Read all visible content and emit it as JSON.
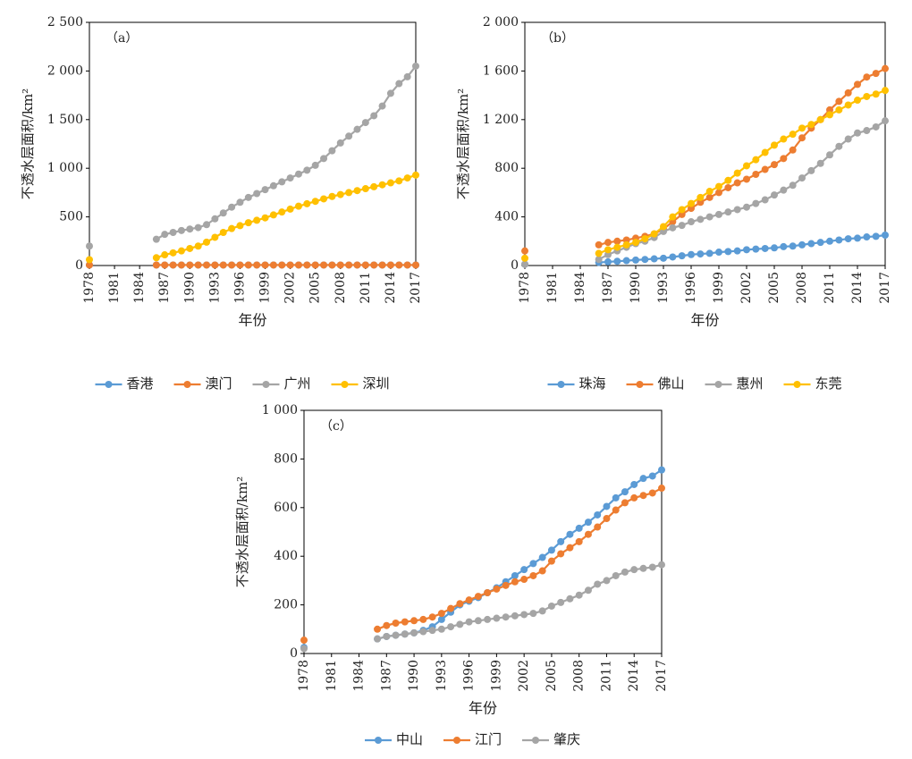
{
  "chart_data": [
    {
      "type": "line",
      "panel_label": "（a）",
      "x_label": "年份",
      "y_label": "不透水层面积/km²",
      "x": [
        1978,
        1979,
        1980,
        1981,
        1982,
        1983,
        1984,
        1985,
        1986,
        1987,
        1988,
        1989,
        1990,
        1991,
        1992,
        1993,
        1994,
        1995,
        1996,
        1997,
        1998,
        1999,
        2000,
        2001,
        2002,
        2003,
        2004,
        2005,
        2006,
        2007,
        2008,
        2009,
        2010,
        2011,
        2012,
        2013,
        2014,
        2015,
        2016,
        2017
      ],
      "xlim": [
        1978,
        2017
      ],
      "xticks": [
        1978,
        1981,
        1984,
        1987,
        1990,
        1993,
        1996,
        1999,
        2002,
        2005,
        2008,
        2011,
        2014,
        2017
      ],
      "ylim": [
        0,
        2500
      ],
      "yticks": [
        0,
        500,
        {
          "value": 1000,
          "label": "1 000"
        },
        {
          "value": 1500,
          "label": "1 500"
        },
        {
          "value": 2000,
          "label": "2 000"
        },
        {
          "value": 2500,
          "label": "2 500"
        }
      ],
      "series": [
        {
          "name": "香港",
          "color": "#5b9bd5",
          "values": [
            5,
            null,
            null,
            null,
            null,
            null,
            null,
            null,
            5,
            5,
            5,
            5,
            5,
            5,
            5,
            5,
            5,
            5,
            5,
            5,
            5,
            5,
            5,
            5,
            5,
            5,
            5,
            5,
            5,
            5,
            5,
            5,
            5,
            5,
            5,
            5,
            5,
            5,
            5,
            5
          ]
        },
        {
          "name": "澳门",
          "color": "#ed7d31",
          "values": [
            5,
            null,
            null,
            null,
            null,
            null,
            null,
            null,
            5,
            5,
            5,
            5,
            5,
            5,
            5,
            5,
            5,
            5,
            5,
            5,
            5,
            5,
            5,
            5,
            5,
            5,
            5,
            5,
            5,
            5,
            5,
            5,
            5,
            5,
            5,
            5,
            5,
            5,
            5,
            5
          ]
        },
        {
          "name": "广州",
          "color": "#a5a5a5",
          "values": [
            200,
            null,
            null,
            null,
            null,
            null,
            null,
            null,
            270,
            320,
            340,
            360,
            375,
            390,
            420,
            480,
            540,
            600,
            650,
            700,
            740,
            780,
            820,
            860,
            900,
            940,
            980,
            1030,
            1100,
            1180,
            1260,
            1330,
            1400,
            1470,
            1540,
            1640,
            1770,
            1870,
            1940,
            2050
          ]
        },
        {
          "name": "深圳",
          "color": "#ffc000",
          "values": [
            60,
            null,
            null,
            null,
            null,
            null,
            null,
            null,
            80,
            110,
            130,
            150,
            175,
            200,
            240,
            290,
            340,
            380,
            410,
            440,
            465,
            490,
            520,
            550,
            580,
            610,
            635,
            660,
            685,
            710,
            730,
            750,
            770,
            790,
            810,
            830,
            850,
            870,
            900,
            930
          ]
        }
      ]
    },
    {
      "type": "line",
      "panel_label": "（b）",
      "x_label": "年份",
      "y_label": "不透水层面积/km²",
      "x": [
        1978,
        1979,
        1980,
        1981,
        1982,
        1983,
        1984,
        1985,
        1986,
        1987,
        1988,
        1989,
        1990,
        1991,
        1992,
        1993,
        1994,
        1995,
        1996,
        1997,
        1998,
        1999,
        2000,
        2001,
        2002,
        2003,
        2004,
        2005,
        2006,
        2007,
        2008,
        2009,
        2010,
        2011,
        2012,
        2013,
        2014,
        2015,
        2016,
        2017
      ],
      "xlim": [
        1978,
        2017
      ],
      "xticks": [
        1978,
        1981,
        1984,
        1987,
        1990,
        1993,
        1996,
        1999,
        2002,
        2005,
        2008,
        2011,
        2014,
        2017
      ],
      "ylim": [
        0,
        2000
      ],
      "yticks": [
        0,
        400,
        800,
        {
          "value": 1200,
          "label": "1 200"
        },
        {
          "value": 1600,
          "label": "1 600"
        },
        {
          "value": 2000,
          "label": "2 000"
        }
      ],
      "series": [
        {
          "name": "珠海",
          "color": "#5b9bd5",
          "values": [
            10,
            null,
            null,
            null,
            null,
            null,
            null,
            null,
            25,
            30,
            35,
            40,
            45,
            50,
            55,
            60,
            70,
            80,
            90,
            95,
            100,
            110,
            115,
            120,
            130,
            135,
            140,
            145,
            155,
            160,
            170,
            180,
            190,
            200,
            210,
            220,
            225,
            235,
            240,
            250
          ]
        },
        {
          "name": "佛山",
          "color": "#ed7d31",
          "values": [
            120,
            null,
            null,
            null,
            null,
            null,
            null,
            null,
            170,
            190,
            200,
            210,
            225,
            240,
            260,
            300,
            360,
            420,
            470,
            520,
            560,
            600,
            640,
            680,
            710,
            750,
            790,
            830,
            880,
            950,
            1050,
            1130,
            1200,
            1280,
            1350,
            1420,
            1490,
            1550,
            1580,
            1620
          ]
        },
        {
          "name": "惠州",
          "color": "#a5a5a5",
          "values": [
            10,
            null,
            null,
            null,
            null,
            null,
            null,
            null,
            50,
            90,
            120,
            150,
            180,
            200,
            230,
            280,
            310,
            330,
            360,
            380,
            400,
            420,
            440,
            460,
            480,
            510,
            540,
            580,
            620,
            660,
            720,
            780,
            840,
            910,
            980,
            1040,
            1090,
            1110,
            1140,
            1190
          ]
        },
        {
          "name": "东莞",
          "color": "#ffc000",
          "values": [
            60,
            null,
            null,
            null,
            null,
            null,
            null,
            null,
            100,
            130,
            150,
            170,
            190,
            220,
            260,
            320,
            400,
            460,
            510,
            560,
            610,
            650,
            700,
            760,
            820,
            870,
            930,
            990,
            1040,
            1080,
            1130,
            1160,
            1200,
            1240,
            1280,
            1320,
            1360,
            1390,
            1410,
            1440
          ]
        }
      ]
    },
    {
      "type": "line",
      "panel_label": "（c）",
      "x_label": "年份",
      "y_label": "不透水层面积/km²",
      "x": [
        1978,
        1979,
        1980,
        1981,
        1982,
        1983,
        1984,
        1985,
        1986,
        1987,
        1988,
        1989,
        1990,
        1991,
        1992,
        1993,
        1994,
        1995,
        1996,
        1997,
        1998,
        1999,
        2000,
        2001,
        2002,
        2003,
        2004,
        2005,
        2006,
        2007,
        2008,
        2009,
        2010,
        2011,
        2012,
        2013,
        2014,
        2015,
        2016,
        2017
      ],
      "xlim": [
        1978,
        2017
      ],
      "xticks": [
        1978,
        1981,
        1984,
        1987,
        1990,
        1993,
        1996,
        1999,
        2002,
        2005,
        2008,
        2011,
        2014,
        2017
      ],
      "ylim": [
        0,
        1000
      ],
      "yticks": [
        0,
        200,
        400,
        600,
        800,
        {
          "value": 1000,
          "label": "1 000"
        }
      ],
      "series": [
        {
          "name": "中山",
          "color": "#5b9bd5",
          "values": [
            25,
            null,
            null,
            null,
            null,
            null,
            null,
            null,
            60,
            70,
            75,
            80,
            85,
            95,
            110,
            140,
            170,
            200,
            215,
            230,
            250,
            270,
            295,
            320,
            345,
            370,
            395,
            425,
            460,
            490,
            515,
            540,
            570,
            605,
            640,
            665,
            695,
            720,
            730,
            755
          ]
        },
        {
          "name": "江门",
          "color": "#ed7d31",
          "values": [
            55,
            null,
            null,
            null,
            null,
            null,
            null,
            null,
            100,
            115,
            125,
            130,
            135,
            140,
            150,
            165,
            185,
            205,
            220,
            235,
            250,
            265,
            280,
            295,
            305,
            320,
            340,
            380,
            410,
            435,
            460,
            490,
            520,
            555,
            590,
            620,
            640,
            650,
            660,
            680
          ]
        },
        {
          "name": "肇庆",
          "color": "#a5a5a5",
          "values": [
            20,
            null,
            null,
            null,
            null,
            null,
            null,
            null,
            60,
            70,
            75,
            80,
            85,
            90,
            95,
            100,
            110,
            120,
            130,
            135,
            140,
            145,
            150,
            155,
            160,
            165,
            175,
            195,
            210,
            225,
            240,
            260,
            285,
            300,
            320,
            335,
            345,
            350,
            355,
            365
          ]
        }
      ]
    }
  ]
}
